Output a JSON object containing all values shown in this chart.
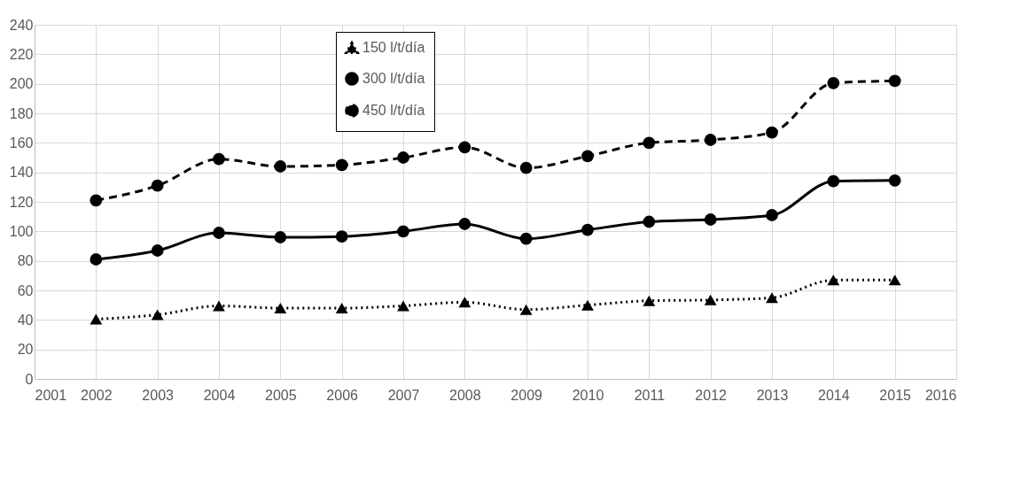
{
  "chart_data": {
    "type": "line",
    "x": [
      2002,
      2003,
      2004,
      2005,
      2006,
      2007,
      2008,
      2009,
      2010,
      2011,
      2012,
      2013,
      2014,
      2015
    ],
    "xlim": [
      2001,
      2016
    ],
    "xticks": [
      2001,
      2002,
      2003,
      2004,
      2005,
      2006,
      2007,
      2008,
      2009,
      2010,
      2011,
      2012,
      2013,
      2014,
      2015,
      2016
    ],
    "ylim": [
      0,
      240
    ],
    "yticks": [
      0,
      20,
      40,
      60,
      80,
      100,
      120,
      140,
      160,
      180,
      200,
      220,
      240
    ],
    "grid": true,
    "legend": "top",
    "series": [
      {
        "name": "150 l/t/día",
        "color": "#000000",
        "marker": "triangle",
        "line_style": "dotted",
        "values": [
          40.5,
          43.5,
          49.5,
          48,
          48,
          49.5,
          52,
          47,
          50,
          53,
          53.5,
          55,
          67,
          67
        ]
      },
      {
        "name": "300 l/t/día",
        "color": "#000000",
        "marker": "circle",
        "line_style": "solid",
        "values": [
          81,
          87,
          99,
          96,
          96.5,
          100,
          105,
          95,
          101,
          106.5,
          108,
          111,
          134,
          134.5
        ]
      },
      {
        "name": "450 l/t/día",
        "color": "#000000",
        "marker": "circle",
        "line_style": "dashed",
        "values": [
          121,
          131,
          149,
          144,
          145,
          150,
          157,
          143,
          151,
          160,
          162,
          167,
          200.5,
          202
        ]
      }
    ]
  }
}
